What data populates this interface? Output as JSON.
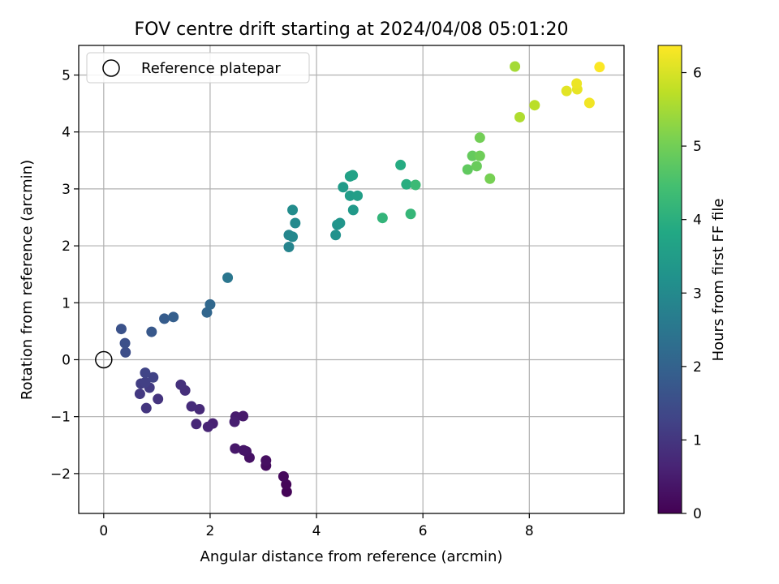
{
  "chart_data": {
    "type": "scatter",
    "title": "FOV centre drift starting at 2024/04/08 05:01:20",
    "xlabel": "Angular distance from reference (arcmin)",
    "ylabel": "Rotation from reference (arcmin)",
    "xlim": [
      -0.47,
      9.78
    ],
    "ylim": [
      -2.7,
      5.52
    ],
    "xticks": [
      0,
      2,
      4,
      6,
      8
    ],
    "yticks": [
      -2,
      -1,
      0,
      1,
      2,
      3,
      4,
      5
    ],
    "grid": true,
    "legend": {
      "placement": "upper-left",
      "entries": [
        "Reference platepar"
      ]
    },
    "reference_point": {
      "x": 0,
      "y": 0
    },
    "colorbar": {
      "label": "Hours from first FF file",
      "range": [
        0,
        6.37
      ],
      "ticks": [
        0,
        1,
        2,
        3,
        4,
        5,
        6
      ],
      "colormap": "viridis"
    },
    "points": [
      {
        "x": 3.44,
        "y": -2.32,
        "t": 0.05
      },
      {
        "x": 3.43,
        "y": -2.19,
        "t": 0.1
      },
      {
        "x": 3.38,
        "y": -2.05,
        "t": 0.15
      },
      {
        "x": 3.05,
        "y": -1.86,
        "t": 0.2
      },
      {
        "x": 3.05,
        "y": -1.77,
        "t": 0.25
      },
      {
        "x": 2.74,
        "y": -1.72,
        "t": 0.3
      },
      {
        "x": 2.68,
        "y": -1.61,
        "t": 0.35
      },
      {
        "x": 2.63,
        "y": -1.59,
        "t": 0.38
      },
      {
        "x": 2.47,
        "y": -1.56,
        "t": 0.42
      },
      {
        "x": 2.62,
        "y": -0.99,
        "t": 0.45
      },
      {
        "x": 2.48,
        "y": -1.0,
        "t": 0.5
      },
      {
        "x": 2.46,
        "y": -1.09,
        "t": 0.55
      },
      {
        "x": 2.05,
        "y": -1.12,
        "t": 0.6
      },
      {
        "x": 1.96,
        "y": -1.18,
        "t": 0.65
      },
      {
        "x": 1.74,
        "y": -1.13,
        "t": 0.7
      },
      {
        "x": 1.8,
        "y": -0.87,
        "t": 0.75
      },
      {
        "x": 1.65,
        "y": -0.82,
        "t": 0.8
      },
      {
        "x": 1.53,
        "y": -0.54,
        "t": 0.85
      },
      {
        "x": 1.45,
        "y": -0.44,
        "t": 0.9
      },
      {
        "x": 1.02,
        "y": -0.69,
        "t": 0.95
      },
      {
        "x": 0.8,
        "y": -0.85,
        "t": 1.0
      },
      {
        "x": 0.68,
        "y": -0.6,
        "t": 1.05
      },
      {
        "x": 0.86,
        "y": -0.49,
        "t": 1.1
      },
      {
        "x": 0.7,
        "y": -0.42,
        "t": 1.15
      },
      {
        "x": 0.78,
        "y": -0.4,
        "t": 1.2
      },
      {
        "x": 0.93,
        "y": -0.31,
        "t": 1.25
      },
      {
        "x": 0.78,
        "y": -0.23,
        "t": 1.3
      },
      {
        "x": 0.41,
        "y": 0.13,
        "t": 1.5
      },
      {
        "x": 0.4,
        "y": 0.29,
        "t": 1.55
      },
      {
        "x": 0.33,
        "y": 0.54,
        "t": 1.6
      },
      {
        "x": 0.9,
        "y": 0.49,
        "t": 1.75
      },
      {
        "x": 1.14,
        "y": 0.72,
        "t": 1.85
      },
      {
        "x": 1.31,
        "y": 0.75,
        "t": 1.9
      },
      {
        "x": 1.94,
        "y": 0.83,
        "t": 2.1
      },
      {
        "x": 2.0,
        "y": 0.97,
        "t": 2.15
      },
      {
        "x": 2.33,
        "y": 1.44,
        "t": 2.5
      },
      {
        "x": 3.48,
        "y": 1.98,
        "t": 2.85
      },
      {
        "x": 3.48,
        "y": 2.19,
        "t": 2.9
      },
      {
        "x": 3.55,
        "y": 2.16,
        "t": 2.95
      },
      {
        "x": 3.6,
        "y": 2.4,
        "t": 3.0
      },
      {
        "x": 3.55,
        "y": 2.63,
        "t": 3.05
      },
      {
        "x": 4.36,
        "y": 2.19,
        "t": 3.2
      },
      {
        "x": 4.39,
        "y": 2.37,
        "t": 3.25
      },
      {
        "x": 4.44,
        "y": 2.4,
        "t": 3.3
      },
      {
        "x": 4.69,
        "y": 2.63,
        "t": 3.4
      },
      {
        "x": 4.5,
        "y": 3.03,
        "t": 3.45
      },
      {
        "x": 4.63,
        "y": 2.88,
        "t": 3.5
      },
      {
        "x": 4.77,
        "y": 2.88,
        "t": 3.55
      },
      {
        "x": 4.63,
        "y": 3.22,
        "t": 3.6
      },
      {
        "x": 4.68,
        "y": 3.24,
        "t": 3.65
      },
      {
        "x": 5.24,
        "y": 2.49,
        "t": 4.15
      },
      {
        "x": 5.58,
        "y": 3.42,
        "t": 3.9
      },
      {
        "x": 5.69,
        "y": 3.08,
        "t": 3.95
      },
      {
        "x": 5.77,
        "y": 2.56,
        "t": 4.2
      },
      {
        "x": 5.86,
        "y": 3.07,
        "t": 4.3
      },
      {
        "x": 6.84,
        "y": 3.34,
        "t": 4.8
      },
      {
        "x": 6.93,
        "y": 3.58,
        "t": 4.85
      },
      {
        "x": 7.01,
        "y": 3.4,
        "t": 4.9
      },
      {
        "x": 7.07,
        "y": 3.58,
        "t": 4.95
      },
      {
        "x": 7.07,
        "y": 3.9,
        "t": 5.0
      },
      {
        "x": 7.26,
        "y": 3.18,
        "t": 5.05
      },
      {
        "x": 7.73,
        "y": 5.15,
        "t": 5.5
      },
      {
        "x": 7.82,
        "y": 4.26,
        "t": 5.6
      },
      {
        "x": 8.1,
        "y": 4.47,
        "t": 5.7
      },
      {
        "x": 8.7,
        "y": 4.72,
        "t": 6.1
      },
      {
        "x": 8.9,
        "y": 4.75,
        "t": 6.15
      },
      {
        "x": 8.89,
        "y": 4.85,
        "t": 6.2
      },
      {
        "x": 9.13,
        "y": 4.51,
        "t": 6.25
      },
      {
        "x": 9.32,
        "y": 5.14,
        "t": 6.35
      }
    ]
  }
}
